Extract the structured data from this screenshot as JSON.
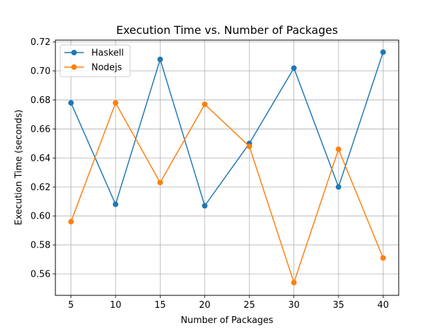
{
  "chart_data": {
    "type": "line",
    "title": "Execution Time vs. Number of Packages",
    "xlabel": "Number of Packages",
    "ylabel": "Execution Time (seconds)",
    "x": [
      5,
      10,
      15,
      20,
      25,
      30,
      35,
      40
    ],
    "xlim": [
      3.25,
      41.75
    ],
    "ylim": [
      0.5452,
      0.7213
    ],
    "xticks": [
      5,
      10,
      15,
      20,
      25,
      30,
      35,
      40
    ],
    "xtick_labels": [
      "5",
      "10",
      "15",
      "20",
      "25",
      "30",
      "35",
      "40"
    ],
    "yticks": [
      0.56,
      0.58,
      0.6,
      0.62,
      0.64,
      0.66,
      0.68,
      0.7,
      0.72
    ],
    "ytick_labels": [
      "0.56",
      "0.58",
      "0.60",
      "0.62",
      "0.64",
      "0.66",
      "0.68",
      "0.70",
      "0.72"
    ],
    "grid": true,
    "legend_position": "top-left",
    "series": [
      {
        "name": "Haskell",
        "color": "#1f77b4",
        "marker": "circle",
        "values": [
          0.678,
          0.608,
          0.708,
          0.607,
          0.65,
          0.702,
          0.62,
          0.713
        ]
      },
      {
        "name": "Nodejs",
        "color": "#ff7f0e",
        "marker": "circle",
        "values": [
          0.596,
          0.678,
          0.623,
          0.677,
          0.648,
          0.554,
          0.646,
          0.571
        ]
      }
    ]
  }
}
